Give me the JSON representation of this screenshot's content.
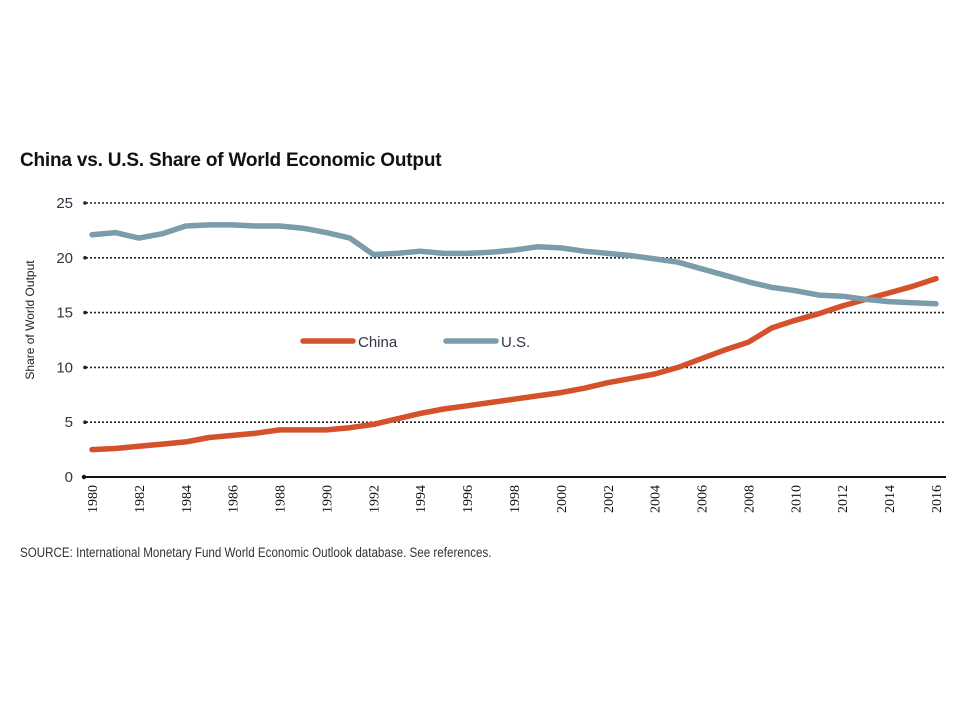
{
  "chart_data": {
    "type": "line",
    "title": "China vs. U.S. Share of World Economic Output",
    "xlabel": "",
    "ylabel": "Share of World Output",
    "source": "SOURCE: International Monetary Fund World Economic Outlook database. See references.",
    "ylim": [
      0,
      25
    ],
    "yticks": [
      0,
      5,
      10,
      15,
      20,
      25
    ],
    "xlim": [
      1980,
      2016
    ],
    "xticks": [
      1980,
      1982,
      1984,
      1986,
      1988,
      1990,
      1992,
      1994,
      1996,
      1998,
      2000,
      2002,
      2004,
      2006,
      2008,
      2010,
      2012,
      2014,
      2016
    ],
    "grid": true,
    "legend_position": "center",
    "x": [
      1980,
      1981,
      1982,
      1983,
      1984,
      1985,
      1986,
      1987,
      1988,
      1989,
      1990,
      1991,
      1992,
      1993,
      1994,
      1995,
      1996,
      1997,
      1998,
      1999,
      2000,
      2001,
      2002,
      2003,
      2004,
      2005,
      2006,
      2007,
      2008,
      2009,
      2010,
      2011,
      2012,
      2013,
      2014,
      2015,
      2016
    ],
    "series": [
      {
        "name": "China",
        "color": "#d4512c",
        "values": [
          2.5,
          2.6,
          2.8,
          3.0,
          3.2,
          3.6,
          3.8,
          4.0,
          4.3,
          4.3,
          4.3,
          4.5,
          4.8,
          5.3,
          5.8,
          6.2,
          6.5,
          6.8,
          7.1,
          7.4,
          7.7,
          8.1,
          8.6,
          9.0,
          9.4,
          10.0,
          10.8,
          11.6,
          12.3,
          13.6,
          14.3,
          14.9,
          15.6,
          16.2,
          16.8,
          17.4,
          18.1
        ]
      },
      {
        "name": "U.S.",
        "color": "#7b9cab",
        "values": [
          22.1,
          22.3,
          21.8,
          22.2,
          22.9,
          23.0,
          23.0,
          22.9,
          22.9,
          22.7,
          22.3,
          21.8,
          20.3,
          20.4,
          20.6,
          20.4,
          20.4,
          20.5,
          20.7,
          21.0,
          20.9,
          20.6,
          20.4,
          20.2,
          19.9,
          19.6,
          19.0,
          18.4,
          17.8,
          17.3,
          17.0,
          16.6,
          16.5,
          16.2,
          16.0,
          15.9,
          15.8
        ]
      }
    ]
  }
}
